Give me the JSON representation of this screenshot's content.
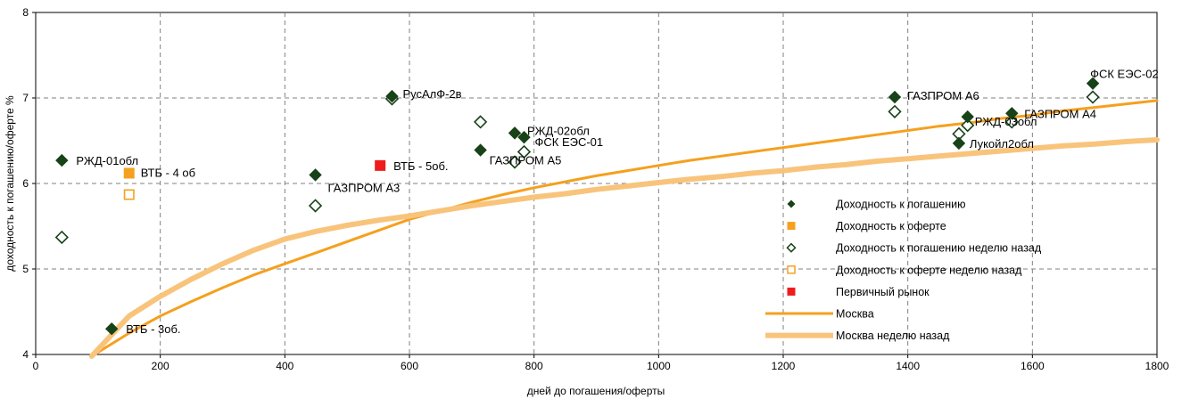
{
  "chart_data": {
    "type": "scatter",
    "title": "",
    "xlabel": "дней до погашения/оферты",
    "ylabel": "доходность к погашению/оферте %",
    "xlim": [
      0,
      1800
    ],
    "ylim": [
      4,
      8
    ],
    "x_ticks": [
      0,
      200,
      400,
      600,
      800,
      1000,
      1200,
      1400,
      1600,
      1800
    ],
    "y_ticks": [
      4,
      5,
      6,
      7,
      8
    ],
    "grid": true,
    "legend_position": "bottom-right",
    "colors": {
      "ytm": "#184218",
      "offer": "#f5a01e",
      "primary": "#ee1c1c",
      "moscow": "#f5a01e",
      "moscow_prev": "#f8c47c"
    },
    "series": [
      {
        "name": "Доходность к погашению",
        "marker": "diamond-filled",
        "points": [
          {
            "x": 42,
            "y": 6.27,
            "label": "РЖД-01обл"
          },
          {
            "x": 122,
            "y": 4.3,
            "label": "ВТБ - 3об."
          },
          {
            "x": 449,
            "y": 6.1,
            "label": "ГАЗПРОМ А3"
          },
          {
            "x": 572,
            "y": 7.02,
            "label": "РусАлФ-2в"
          },
          {
            "x": 714,
            "y": 6.39,
            "label": "ГАЗПРОМ А5"
          },
          {
            "x": 769,
            "y": 6.59,
            "label": "РЖД-02обл"
          },
          {
            "x": 784,
            "y": 6.54,
            "label": "ФСК ЕЭС-01"
          },
          {
            "x": 1379,
            "y": 7.01,
            "label": "ГАЗПРОМ А6"
          },
          {
            "x": 1482,
            "y": 6.47,
            "label": "Лукойл2обл"
          },
          {
            "x": 1496,
            "y": 6.78,
            "label": "РЖД-03обл"
          },
          {
            "x": 1567,
            "y": 6.82,
            "label": "ГАЗПРОМ А4"
          },
          {
            "x": 1697,
            "y": 7.17,
            "label": "ФСК ЕЭС-02"
          }
        ]
      },
      {
        "name": "Доходность к оферте",
        "marker": "square-filled",
        "points": [
          {
            "x": 150,
            "y": 6.12,
            "label": "ВТБ - 4 об"
          }
        ]
      },
      {
        "name": "Доходность к погашению неделю назад",
        "marker": "diamond-open",
        "points": [
          {
            "x": 42,
            "y": 5.37
          },
          {
            "x": 449,
            "y": 5.74
          },
          {
            "x": 572,
            "y": 6.99
          },
          {
            "x": 714,
            "y": 6.72
          },
          {
            "x": 769,
            "y": 6.25
          },
          {
            "x": 784,
            "y": 6.37
          },
          {
            "x": 1379,
            "y": 6.84
          },
          {
            "x": 1482,
            "y": 6.58
          },
          {
            "x": 1496,
            "y": 6.68
          },
          {
            "x": 1567,
            "y": 6.72
          },
          {
            "x": 1697,
            "y": 7.01
          }
        ]
      },
      {
        "name": "Доходность к оферте неделю назад",
        "marker": "square-open",
        "points": [
          {
            "x": 150,
            "y": 5.87
          }
        ]
      },
      {
        "name": "Первичный рынок",
        "marker": "square-filled-red",
        "points": [
          {
            "x": 553,
            "y": 6.21,
            "label": "ВТБ - 5об."
          }
        ]
      },
      {
        "name": "Москва",
        "marker": "line",
        "x": [
          90,
          150,
          200,
          250,
          300,
          350,
          400,
          450,
          500,
          550,
          600,
          650,
          700,
          750,
          800,
          850,
          900,
          950,
          1000,
          1050,
          1100,
          1150,
          1200,
          1250,
          1300,
          1350,
          1400,
          1450,
          1500,
          1550,
          1600,
          1650,
          1700,
          1750,
          1800
        ],
        "y": [
          3.98,
          4.25,
          4.45,
          4.62,
          4.78,
          4.93,
          5.06,
          5.19,
          5.32,
          5.45,
          5.58,
          5.68,
          5.78,
          5.87,
          5.95,
          6.02,
          6.09,
          6.15,
          6.21,
          6.27,
          6.32,
          6.37,
          6.42,
          6.47,
          6.52,
          6.57,
          6.62,
          6.67,
          6.71,
          6.76,
          6.8,
          6.85,
          6.89,
          6.93,
          6.97
        ]
      },
      {
        "name": "Москва неделю назад",
        "marker": "line",
        "x": [
          90,
          150,
          200,
          250,
          300,
          350,
          400,
          450,
          500,
          550,
          600,
          650,
          700,
          750,
          800,
          850,
          900,
          950,
          1000,
          1050,
          1100,
          1150,
          1200,
          1250,
          1300,
          1350,
          1400,
          1450,
          1500,
          1550,
          1600,
          1650,
          1700,
          1750,
          1800
        ],
        "y": [
          3.98,
          4.45,
          4.68,
          4.88,
          5.06,
          5.22,
          5.35,
          5.44,
          5.51,
          5.57,
          5.62,
          5.68,
          5.74,
          5.79,
          5.84,
          5.88,
          5.93,
          5.97,
          6.01,
          6.05,
          6.08,
          6.12,
          6.15,
          6.19,
          6.22,
          6.26,
          6.29,
          6.32,
          6.35,
          6.38,
          6.41,
          6.44,
          6.46,
          6.49,
          6.51
        ]
      }
    ],
    "legend_items": [
      {
        "name": "Доходность к погашению",
        "marker": "diamond-filled"
      },
      {
        "name": "Доходность к оферте",
        "marker": "square-filled"
      },
      {
        "name": "Доходность к погашению неделю назад",
        "marker": "diamond-open"
      },
      {
        "name": "Доходность к оферте неделю назад",
        "marker": "square-open"
      },
      {
        "name": "Первичный рынок",
        "marker": "square-filled-red"
      },
      {
        "name": "Москва",
        "marker": "line-dark"
      },
      {
        "name": "Москва неделю назад",
        "marker": "line-light"
      }
    ]
  }
}
